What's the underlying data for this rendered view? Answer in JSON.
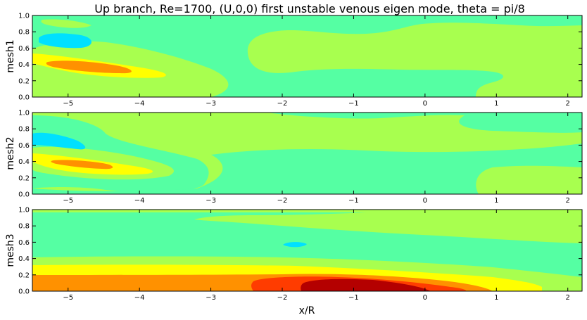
{
  "figure": {
    "title": "Up branch, Re=1700, (U,0,0) first unstable venous eigen mode, theta = pi/8",
    "xlabel": "x/R"
  },
  "colors": {
    "blue": "#00e0ff",
    "cyan": "#55ffa3",
    "green": "#a8ff4f",
    "yellow": "#ffff00",
    "orange": "#ff9100",
    "red": "#ff3c00",
    "darkred": "#b40000"
  },
  "chart_data": [
    {
      "type": "contour",
      "ylabel": "mesh1",
      "xlim": [
        -5.5,
        2.2
      ],
      "ylim": [
        0.0,
        1.0
      ],
      "xticks": [
        "−5",
        "−4",
        "−3",
        "−2",
        "−1",
        "0",
        "1",
        "2"
      ],
      "yticks": [
        "0.0",
        "0.2",
        "0.4",
        "0.6",
        "0.8",
        "1.0"
      ],
      "grid": false,
      "levels_present": [
        "blue",
        "cyan",
        "green",
        "yellow",
        "orange"
      ]
    },
    {
      "type": "contour",
      "ylabel": "mesh2",
      "xlim": [
        -5.5,
        2.2
      ],
      "ylim": [
        0.0,
        1.0
      ],
      "xticks": [
        "−5",
        "−4",
        "−3",
        "−2",
        "−1",
        "0",
        "1",
        "2"
      ],
      "yticks": [
        "0.0",
        "0.2",
        "0.4",
        "0.6",
        "0.8",
        "1.0"
      ],
      "grid": false,
      "levels_present": [
        "blue",
        "cyan",
        "green",
        "yellow",
        "orange"
      ]
    },
    {
      "type": "contour",
      "ylabel": "mesh3",
      "xlim": [
        -5.5,
        2.2
      ],
      "ylim": [
        0.0,
        1.0
      ],
      "xticks": [
        "−5",
        "−4",
        "−3",
        "−2",
        "−1",
        "0",
        "1",
        "2"
      ],
      "yticks": [
        "0.0",
        "0.2",
        "0.4",
        "0.6",
        "0.8",
        "1.0"
      ],
      "grid": false,
      "levels_present": [
        "blue",
        "cyan",
        "green",
        "yellow",
        "orange",
        "red",
        "darkred"
      ]
    }
  ]
}
